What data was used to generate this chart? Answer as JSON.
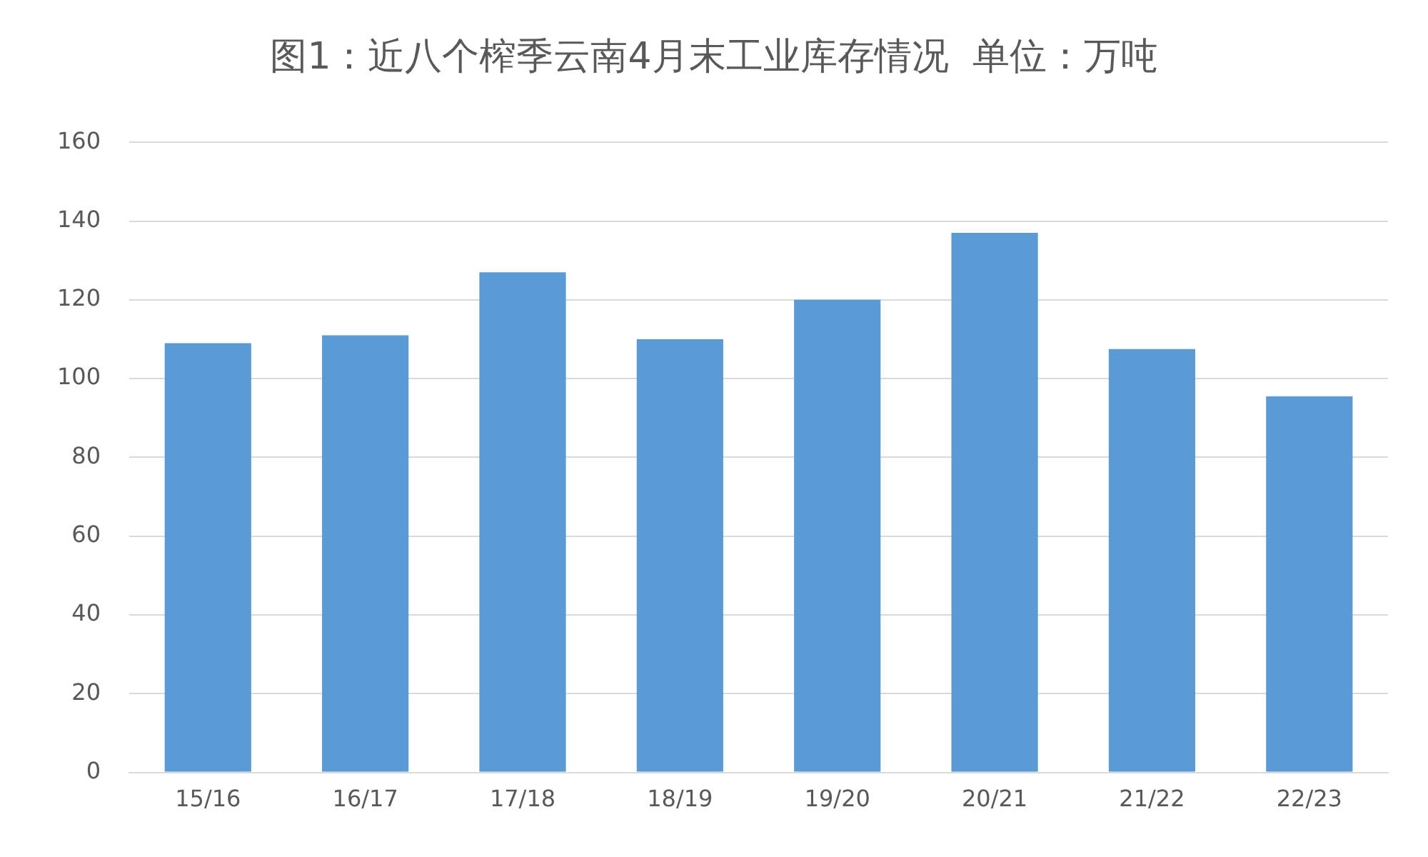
{
  "chart_data": {
    "type": "bar",
    "title": "图1：近八个榨季云南4月末工业库存情况  单位：万吨",
    "categories": [
      "15/16",
      "16/17",
      "17/18",
      "18/19",
      "19/20",
      "20/21",
      "21/22",
      "22/23"
    ],
    "values": [
      109,
      111,
      127,
      110,
      120,
      137,
      107.5,
      95.5
    ],
    "color": "#5b9bd5",
    "ylim": [
      0,
      160
    ],
    "yticks": [
      0,
      20,
      40,
      60,
      80,
      100,
      120,
      140,
      160
    ],
    "grid": "y",
    "legend": false
  }
}
